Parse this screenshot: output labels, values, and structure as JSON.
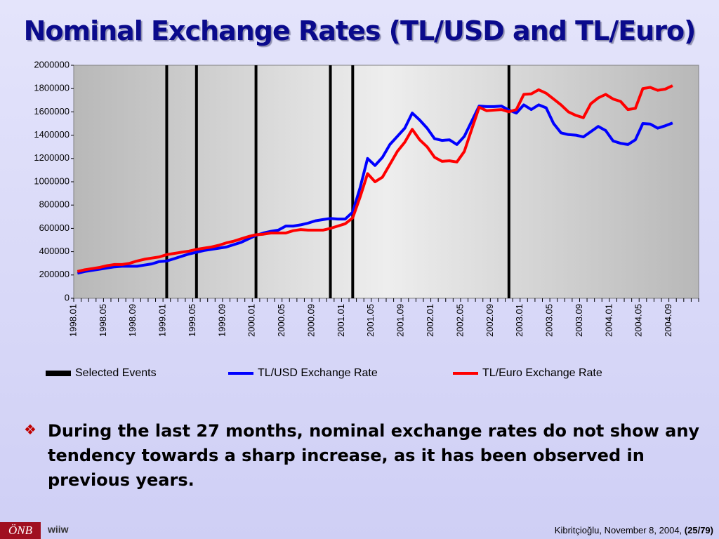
{
  "title": "Nominal Exchange Rates (TL/USD and TL/Euro)",
  "chart_data": {
    "type": "line",
    "categories": [
      "1998.01",
      null,
      null,
      null,
      "1998.05",
      null,
      null,
      null,
      "1998.09",
      null,
      null,
      null,
      "1999.01",
      null,
      null,
      null,
      "1999.05",
      null,
      null,
      null,
      "1999.09",
      null,
      null,
      null,
      "2000.01",
      null,
      null,
      null,
      "2000.05",
      null,
      null,
      null,
      "2000.09",
      null,
      null,
      null,
      "2001.01",
      null,
      null,
      null,
      "2001.05",
      null,
      null,
      null,
      "2001.09",
      null,
      null,
      null,
      "2002.01",
      null,
      null,
      null,
      "2002.05",
      null,
      null,
      null,
      "2002.09",
      null,
      null,
      null,
      "2003.01",
      null,
      null,
      null,
      "2003.05",
      null,
      null,
      null,
      "2003.09",
      null,
      null,
      null,
      "2004.01",
      null,
      null,
      null,
      "2004.05",
      null,
      null,
      null,
      "2004.09",
      null,
      null,
      null
    ],
    "series": [
      {
        "name": "TL/USD Exchange Rate",
        "color": "#0000ff",
        "values": [
          215000,
          230000,
          240000,
          250000,
          260000,
          270000,
          275000,
          275000,
          275000,
          285000,
          295000,
          315000,
          320000,
          340000,
          360000,
          380000,
          395000,
          410000,
          420000,
          430000,
          440000,
          460000,
          480000,
          510000,
          540000,
          560000,
          575000,
          585000,
          620000,
          620000,
          630000,
          645000,
          665000,
          675000,
          685000,
          680000,
          680000,
          740000,
          950000,
          1200000,
          1140000,
          1210000,
          1320000,
          1390000,
          1460000,
          1590000,
          1530000,
          1460000,
          1370000,
          1355000,
          1360000,
          1320000,
          1390000,
          1520000,
          1650000,
          1645000,
          1645000,
          1650000,
          1615000,
          1590000,
          1660000,
          1620000,
          1660000,
          1635000,
          1500000,
          1420000,
          1405000,
          1400000,
          1385000,
          1430000,
          1475000,
          1440000,
          1350000,
          1330000,
          1320000,
          1360000,
          1500000,
          1495000,
          1460000,
          1480000,
          1505000,
          null,
          null,
          null
        ]
      },
      {
        "name": "TL/Euro Exchange Rate",
        "color": "#ff0000",
        "values": [
          230000,
          245000,
          255000,
          265000,
          280000,
          290000,
          290000,
          300000,
          320000,
          335000,
          345000,
          355000,
          375000,
          385000,
          395000,
          405000,
          420000,
          430000,
          440000,
          455000,
          475000,
          490000,
          510000,
          530000,
          545000,
          550000,
          560000,
          560000,
          560000,
          580000,
          590000,
          585000,
          585000,
          585000,
          600000,
          620000,
          640000,
          690000,
          870000,
          1070000,
          1000000,
          1040000,
          1150000,
          1260000,
          1340000,
          1450000,
          1360000,
          1300000,
          1210000,
          1175000,
          1180000,
          1170000,
          1260000,
          1450000,
          1640000,
          1610000,
          1615000,
          1620000,
          1600000,
          1620000,
          1750000,
          1755000,
          1790000,
          1760000,
          1710000,
          1660000,
          1600000,
          1570000,
          1550000,
          1670000,
          1720000,
          1750000,
          1710000,
          1690000,
          1620000,
          1630000,
          1800000,
          1810000,
          1785000,
          1795000,
          1825000,
          null,
          null,
          null
        ]
      }
    ],
    "events": {
      "name": "Selected Events",
      "color": "#000000",
      "x": [
        12,
        16,
        24,
        34,
        37,
        58
      ]
    },
    "ylim": [
      0,
      2000000
    ],
    "yticks": [
      0,
      200000,
      400000,
      600000,
      800000,
      1000000,
      1200000,
      1400000,
      1600000,
      1800000,
      2000000
    ]
  },
  "bullet": "During the last 27 months, nominal exchange rates do not show any tendency towards a sharp increase, as it has been observed in previous years.",
  "footer": "Kibritçioğlu, November 8, 2004,",
  "page": "(25/79)",
  "logo1": "ÖNB",
  "logo2": "wiiw"
}
